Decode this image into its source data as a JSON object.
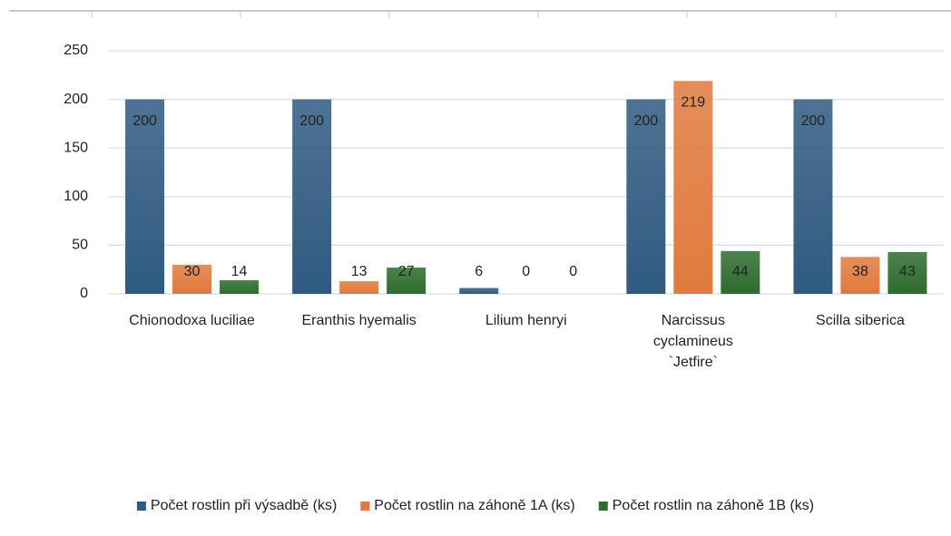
{
  "chart_data": {
    "type": "bar",
    "categories": [
      "Chionodoxa luciliae",
      "Eranthis hyemalis",
      "Lilium henryi",
      "Narcissus cyclamineus `Jetfire`",
      "Scilla siberica"
    ],
    "series": [
      {
        "name": "Počet rostlin při výsadbě (ks)",
        "color": "#2f5a80",
        "values": [
          200,
          200,
          6,
          200,
          200
        ]
      },
      {
        "name": "Počet rostlin na záhoně 1A (ks)",
        "color": "#e07a3e",
        "values": [
          30,
          13,
          0,
          219,
          38
        ]
      },
      {
        "name": "Počet rostlin na záhoně 1B (ks)",
        "color": "#2e6b2e",
        "values": [
          14,
          27,
          0,
          44,
          43
        ]
      }
    ],
    "ylim": [
      0,
      250
    ],
    "yticks": [
      0,
      50,
      100,
      150,
      200,
      250
    ],
    "grid": true,
    "legend": "bottom"
  }
}
